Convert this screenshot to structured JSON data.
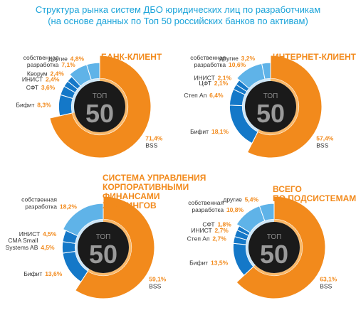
{
  "title_line1": "Структура рынка систем ДБО юридических лиц по разработчикам",
  "title_line2": "(на основе данных по Топ 50 российских банков по активам)",
  "center_top": "ТОП",
  "center_number": "50",
  "colors": {
    "bss": "#f28a1c",
    "bss_light": "#f9b96b",
    "blue_dark": "#1478c8",
    "blue_light": "#5fb3e8",
    "center": "#1a1a1a",
    "title": "#1aa3d9"
  },
  "chart_data": [
    {
      "type": "pie",
      "title": "БАНК-КЛИЕНТ",
      "slices": [
        {
          "label": "BSS",
          "value": 71.4,
          "display": "71,4%"
        },
        {
          "label": "Бифит",
          "value": 8.3,
          "display": "8,3%"
        },
        {
          "label": "СФТ",
          "value": 3.6,
          "display": "3,6%"
        },
        {
          "label": "ИНИСТ",
          "value": 2.4,
          "display": "2,4%"
        },
        {
          "label": "Кворум",
          "value": 2.4,
          "display": "2,4%"
        },
        {
          "label": "собственная разработка",
          "value": 7.1,
          "display": "7,1%"
        },
        {
          "label": "другие",
          "value": 4.8,
          "display": "4,8%"
        }
      ]
    },
    {
      "type": "pie",
      "title": "ИНТЕРНЕТ-КЛИЕНТ",
      "slices": [
        {
          "label": "BSS",
          "value": 57.4,
          "display": "57,4%"
        },
        {
          "label": "Бифит",
          "value": 18.1,
          "display": "18,1%"
        },
        {
          "label": "Степ Ап",
          "value": 6.4,
          "display": "6,4%"
        },
        {
          "label": "ЦФТ",
          "value": 2.1,
          "display": "2,1%"
        },
        {
          "label": "ИНИСТ",
          "value": 2.1,
          "display": "2,1%"
        },
        {
          "label": "собственная разработка",
          "value": 10.6,
          "display": "10,6%"
        },
        {
          "label": "другие",
          "value": 3.2,
          "display": "3,2%"
        }
      ]
    },
    {
      "type": "pie",
      "title": "СИСТЕМА УПРАВЛЕНИЯ КОРПОРАТИВНЫМИ ФИНАНСАМИ ХОЛДИНГОВ",
      "slices": [
        {
          "label": "BSS",
          "value": 59.1,
          "display": "59,1%"
        },
        {
          "label": "Бифит",
          "value": 13.6,
          "display": "13,6%"
        },
        {
          "label": "CMA Small Systems AB",
          "value": 4.5,
          "display": "4,5%"
        },
        {
          "label": "ИНИСТ",
          "value": 4.5,
          "display": "4,5%"
        },
        {
          "label": "собственная разработка",
          "value": 18.2,
          "display": "18,2%"
        }
      ]
    },
    {
      "type": "pie",
      "title": "ВСЕГО ПО ПОДСИСТЕМАМ",
      "slices": [
        {
          "label": "BSS",
          "value": 63.1,
          "display": "63,1%"
        },
        {
          "label": "Бифит",
          "value": 13.5,
          "display": "13,5%"
        },
        {
          "label": "Степ Ап",
          "value": 2.7,
          "display": "2,7%"
        },
        {
          "label": "ИНИСТ",
          "value": 2.7,
          "display": "2,7%"
        },
        {
          "label": "СФТ",
          "value": 1.8,
          "display": "1,8%"
        },
        {
          "label": "собственная разработка",
          "value": 10.8,
          "display": "10,8%"
        },
        {
          "label": "другие",
          "value": 5.4,
          "display": "5,4%"
        }
      ]
    }
  ]
}
